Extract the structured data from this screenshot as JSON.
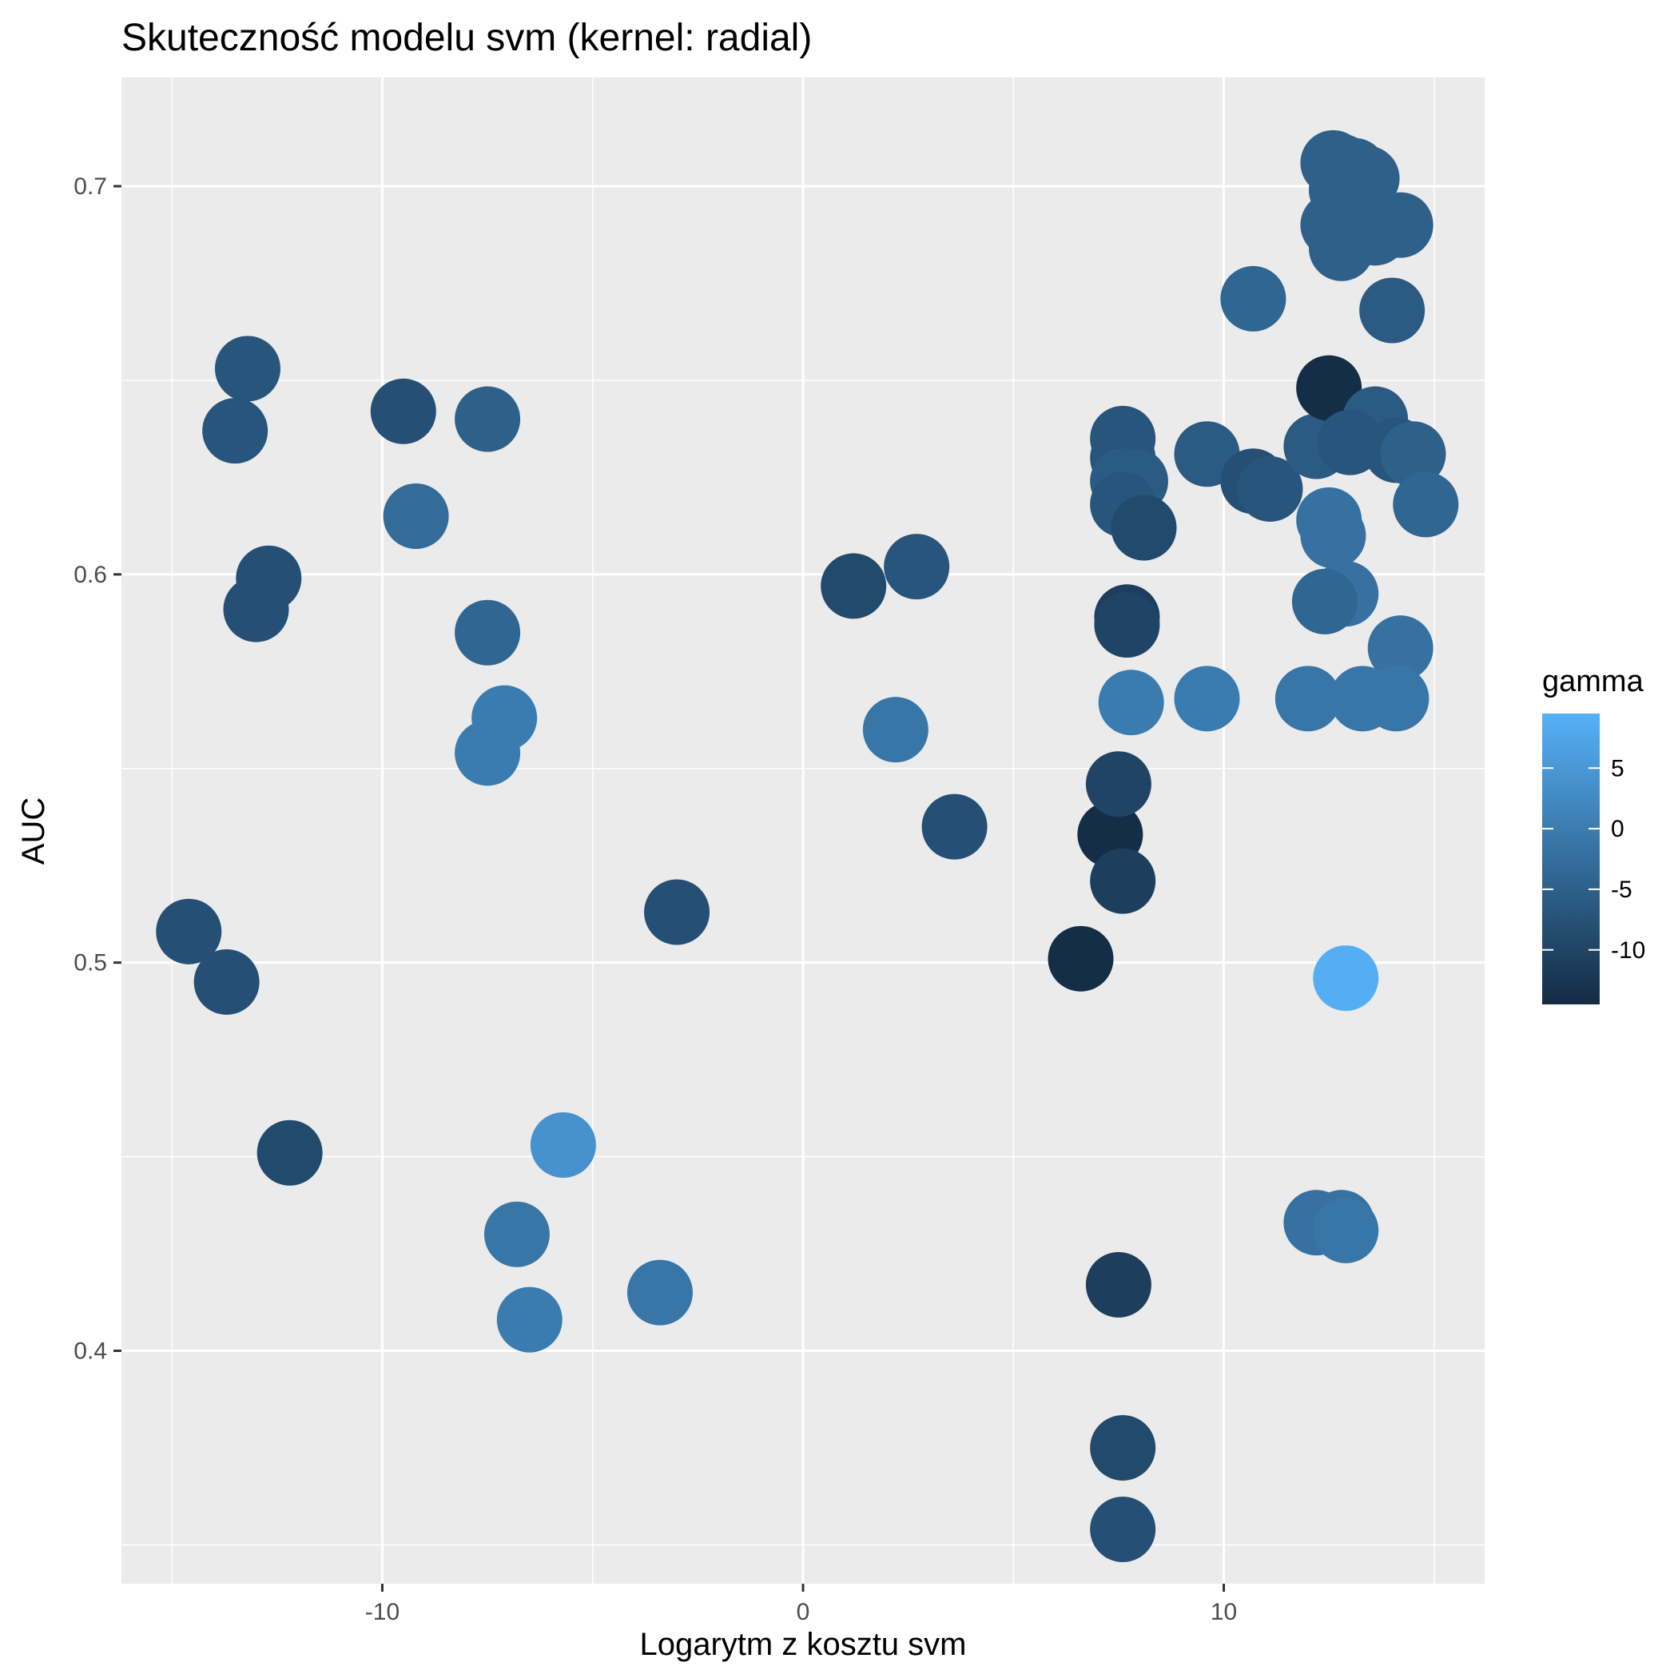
{
  "chart_data": {
    "type": "scatter",
    "title": "Skuteczność modelu svm (kernel: radial)",
    "xlabel": "Logarytm z kosztu svm",
    "ylabel": "AUC",
    "xlim": [
      -16.2,
      16.2
    ],
    "ylim": [
      0.34,
      0.728
    ],
    "x_ticks": [
      -10,
      0,
      10
    ],
    "x_tick_labels": [
      "-10",
      "0",
      "10"
    ],
    "y_ticks": [
      0.4,
      0.5,
      0.6,
      0.7
    ],
    "y_tick_labels": [
      "0.4",
      "0.5",
      "0.6",
      "0.7"
    ],
    "grid": true,
    "legend": {
      "title": "gamma",
      "position": "right",
      "type": "colorbar",
      "ticks": [
        5,
        0,
        -5,
        -10
      ],
      "tick_labels": [
        "5",
        "0",
        "-5",
        "-10"
      ],
      "range": [
        -14.5,
        9.5
      ],
      "color_low": "#132B43",
      "color_high": "#56B1F7"
    },
    "points": [
      {
        "x": -14.6,
        "y": 0.508,
        "gamma": -8
      },
      {
        "x": -13.7,
        "y": 0.495,
        "gamma": -8
      },
      {
        "x": -13.2,
        "y": 0.653,
        "gamma": -7
      },
      {
        "x": -13.5,
        "y": 0.637,
        "gamma": -7
      },
      {
        "x": -12.7,
        "y": 0.599,
        "gamma": -8
      },
      {
        "x": -13.0,
        "y": 0.591,
        "gamma": -8
      },
      {
        "x": -12.2,
        "y": 0.451,
        "gamma": -9
      },
      {
        "x": -9.5,
        "y": 0.642,
        "gamma": -8
      },
      {
        "x": -9.2,
        "y": 0.615,
        "gamma": -3
      },
      {
        "x": -7.5,
        "y": 0.64,
        "gamma": -5
      },
      {
        "x": -7.5,
        "y": 0.585,
        "gamma": -4
      },
      {
        "x": -7.1,
        "y": 0.563,
        "gamma": 0
      },
      {
        "x": -7.5,
        "y": 0.554,
        "gamma": 0
      },
      {
        "x": -6.8,
        "y": 0.43,
        "gamma": -1
      },
      {
        "x": -6.5,
        "y": 0.408,
        "gamma": 0
      },
      {
        "x": -5.7,
        "y": 0.453,
        "gamma": 4
      },
      {
        "x": -3.4,
        "y": 0.415,
        "gamma": -1
      },
      {
        "x": -3.0,
        "y": 0.513,
        "gamma": -8
      },
      {
        "x": 1.2,
        "y": 0.597,
        "gamma": -9
      },
      {
        "x": 2.7,
        "y": 0.602,
        "gamma": -7
      },
      {
        "x": 2.2,
        "y": 0.56,
        "gamma": -1
      },
      {
        "x": 3.6,
        "y": 0.535,
        "gamma": -8
      },
      {
        "x": 6.6,
        "y": 0.501,
        "gamma": -14
      },
      {
        "x": 7.3,
        "y": 0.533,
        "gamma": -14
      },
      {
        "x": 7.5,
        "y": 0.546,
        "gamma": -10
      },
      {
        "x": 7.6,
        "y": 0.521,
        "gamma": -11
      },
      {
        "x": 7.5,
        "y": 0.417,
        "gamma": -11
      },
      {
        "x": 7.6,
        "y": 0.375,
        "gamma": -9
      },
      {
        "x": 7.6,
        "y": 0.354,
        "gamma": -8
      },
      {
        "x": 7.6,
        "y": 0.635,
        "gamma": -7
      },
      {
        "x": 7.6,
        "y": 0.63,
        "gamma": -7
      },
      {
        "x": 7.6,
        "y": 0.624,
        "gamma": -6
      },
      {
        "x": 7.9,
        "y": 0.624,
        "gamma": -6
      },
      {
        "x": 7.6,
        "y": 0.618,
        "gamma": -7
      },
      {
        "x": 8.1,
        "y": 0.612,
        "gamma": -9
      },
      {
        "x": 7.7,
        "y": 0.589,
        "gamma": -11
      },
      {
        "x": 7.7,
        "y": 0.587,
        "gamma": -10
      },
      {
        "x": 7.8,
        "y": 0.567,
        "gamma": 0
      },
      {
        "x": 9.6,
        "y": 0.631,
        "gamma": -6
      },
      {
        "x": 9.6,
        "y": 0.568,
        "gamma": 0
      },
      {
        "x": 10.7,
        "y": 0.671,
        "gamma": -4
      },
      {
        "x": 10.7,
        "y": 0.624,
        "gamma": -8
      },
      {
        "x": 11.1,
        "y": 0.622,
        "gamma": -7
      },
      {
        "x": 12.0,
        "y": 0.568,
        "gamma": -1
      },
      {
        "x": 12.2,
        "y": 0.633,
        "gamma": -6
      },
      {
        "x": 12.5,
        "y": 0.648,
        "gamma": -14
      },
      {
        "x": 12.5,
        "y": 0.614,
        "gamma": -2
      },
      {
        "x": 12.6,
        "y": 0.61,
        "gamma": -2
      },
      {
        "x": 12.9,
        "y": 0.595,
        "gamma": -2
      },
      {
        "x": 12.4,
        "y": 0.593,
        "gamma": -4
      },
      {
        "x": 12.6,
        "y": 0.706,
        "gamma": -5
      },
      {
        "x": 12.8,
        "y": 0.705,
        "gamma": -5
      },
      {
        "x": 13.1,
        "y": 0.704,
        "gamma": -5
      },
      {
        "x": 13.4,
        "y": 0.702,
        "gamma": -5
      },
      {
        "x": 12.8,
        "y": 0.699,
        "gamma": -5
      },
      {
        "x": 13.0,
        "y": 0.696,
        "gamma": -5
      },
      {
        "x": 12.6,
        "y": 0.69,
        "gamma": -5
      },
      {
        "x": 13.6,
        "y": 0.688,
        "gamma": -5
      },
      {
        "x": 14.2,
        "y": 0.69,
        "gamma": -5
      },
      {
        "x": 12.8,
        "y": 0.684,
        "gamma": -5
      },
      {
        "x": 14.0,
        "y": 0.668,
        "gamma": -6
      },
      {
        "x": 13.6,
        "y": 0.64,
        "gamma": -6
      },
      {
        "x": 13.0,
        "y": 0.634,
        "gamma": -7
      },
      {
        "x": 14.1,
        "y": 0.632,
        "gamma": -7
      },
      {
        "x": 14.5,
        "y": 0.631,
        "gamma": -5
      },
      {
        "x": 14.8,
        "y": 0.618,
        "gamma": -4
      },
      {
        "x": 14.2,
        "y": 0.581,
        "gamma": -2
      },
      {
        "x": 13.3,
        "y": 0.568,
        "gamma": -1
      },
      {
        "x": 14.1,
        "y": 0.568,
        "gamma": -1
      },
      {
        "x": 12.2,
        "y": 0.433,
        "gamma": -2
      },
      {
        "x": 12.8,
        "y": 0.433,
        "gamma": -2
      },
      {
        "x": 12.9,
        "y": 0.431,
        "gamma": -1
      },
      {
        "x": 12.9,
        "y": 0.496,
        "gamma": 9
      }
    ]
  }
}
